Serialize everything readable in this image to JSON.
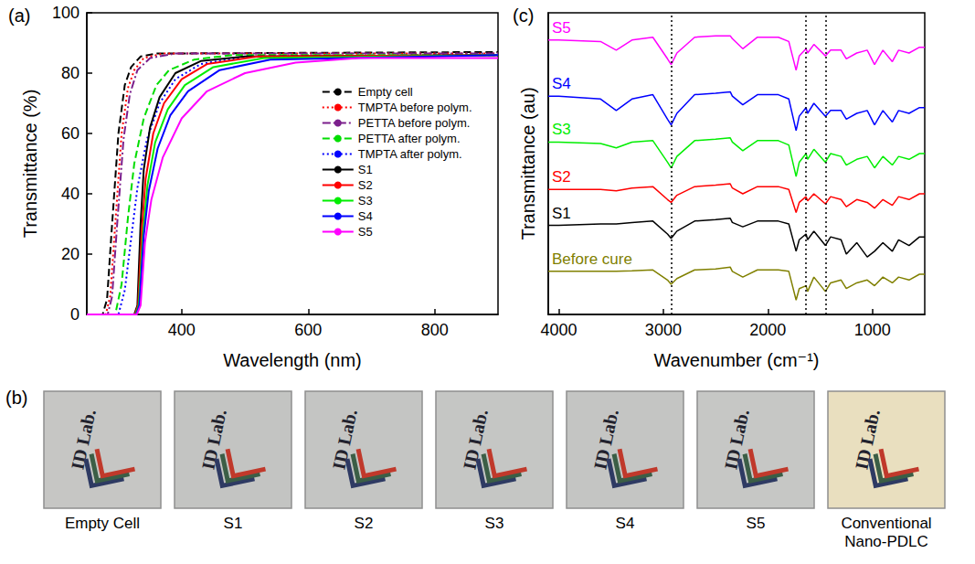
{
  "chart_data": [
    {
      "type": "line",
      "panel_label": "(a)",
      "x_label": "Wavelength (nm)",
      "y_label": "Transmittance (%)",
      "xlim": [
        250,
        900
      ],
      "xticks": [
        400,
        600,
        800
      ],
      "ylim": [
        0,
        100
      ],
      "yticks": [
        0,
        20,
        40,
        60,
        80,
        100
      ],
      "grid": false,
      "legend": "right",
      "series": [
        {
          "name": "Empty cell",
          "color": "#000000",
          "line_style": "dashed",
          "x": [
            250,
            275,
            282,
            290,
            300,
            310,
            320,
            335,
            360,
            900
          ],
          "values": [
            0,
            0,
            5,
            30,
            60,
            76,
            82,
            85.5,
            86.5,
            87
          ]
        },
        {
          "name": "TMPTA before polym.",
          "color": "#ff0000",
          "line_style": "dotted",
          "x": [
            250,
            280,
            287,
            295,
            305,
            315,
            325,
            340,
            370,
            900
          ],
          "values": [
            0,
            0,
            6,
            30,
            60,
            75,
            81,
            85,
            86.5,
            86.5
          ]
        },
        {
          "name": "PETTA before polym.",
          "color": "#7b1f8c",
          "line_style": "dashdot",
          "x": [
            250,
            283,
            290,
            298,
            308,
            318,
            330,
            350,
            390,
            900
          ],
          "values": [
            0,
            0,
            6,
            30,
            58,
            73,
            81,
            85,
            86.5,
            86.5
          ]
        },
        {
          "name": "PETTA after polym.",
          "color": "#00dd00",
          "line_style": "dashed",
          "x": [
            250,
            295,
            305,
            315,
            325,
            340,
            360,
            380,
            420,
            480,
            900
          ],
          "values": [
            0,
            0,
            10,
            32,
            50,
            65,
            76,
            81,
            84.5,
            86,
            86
          ]
        },
        {
          "name": "TMPTA after polym.",
          "color": "#0000ff",
          "line_style": "dotted",
          "x": [
            250,
            300,
            310,
            320,
            330,
            345,
            365,
            390,
            430,
            500,
            900
          ],
          "values": [
            0,
            0,
            8,
            25,
            42,
            58,
            70,
            78,
            83,
            85.5,
            86
          ]
        },
        {
          "name": "S1",
          "color": "#000000",
          "line_style": "solid",
          "x": [
            250,
            325,
            330,
            335,
            340,
            350,
            365,
            390,
            430,
            500,
            900
          ],
          "values": [
            0,
            0,
            3,
            30,
            48,
            62,
            72,
            80,
            84,
            85.5,
            86
          ]
        },
        {
          "name": "S2",
          "color": "#ff0000",
          "line_style": "solid",
          "x": [
            250,
            326,
            331,
            337,
            343,
            355,
            372,
            400,
            440,
            520,
            900
          ],
          "values": [
            0,
            0,
            3,
            28,
            45,
            60,
            70,
            78,
            83,
            85.5,
            86
          ]
        },
        {
          "name": "S3",
          "color": "#00ee00",
          "line_style": "solid",
          "x": [
            250,
            327,
            332,
            339,
            346,
            358,
            378,
            405,
            450,
            530,
            900
          ],
          "values": [
            0,
            0,
            3,
            27,
            43,
            57,
            68,
            76,
            82,
            85,
            86
          ]
        },
        {
          "name": "S4",
          "color": "#0000ff",
          "line_style": "solid",
          "x": [
            250,
            328,
            333,
            340,
            348,
            362,
            382,
            410,
            460,
            540,
            900
          ],
          "values": [
            0,
            0,
            3,
            26,
            41,
            55,
            66,
            74,
            81,
            84.5,
            86
          ]
        },
        {
          "name": "S5",
          "color": "#ff00ff",
          "line_style": "solid",
          "x": [
            250,
            329,
            335,
            342,
            352,
            370,
            400,
            440,
            500,
            580,
            680,
            900
          ],
          "values": [
            0,
            0,
            3,
            24,
            38,
            52,
            65,
            74,
            80,
            83.5,
            85,
            85
          ]
        }
      ]
    },
    {
      "type": "line",
      "panel_label": "(c)",
      "x_label": "Wavenumber (cm⁻¹)",
      "y_label": "Transmittance (au)",
      "xlim": [
        4100,
        500
      ],
      "xticks": [
        4000,
        3000,
        2000,
        1000
      ],
      "ylim": [
        0,
        105
      ],
      "grid": false,
      "tick_labels": "x",
      "vlines": [
        2925,
        1635,
        1450
      ],
      "x": [
        4100,
        4000,
        3600,
        3450,
        3300,
        3100,
        2960,
        2925,
        2870,
        2700,
        2500,
        2360,
        2340,
        2240,
        2100,
        1900,
        1800,
        1730,
        1700,
        1635,
        1620,
        1560,
        1450,
        1400,
        1300,
        1250,
        1150,
        1050,
        980,
        900,
        810,
        750,
        650,
        550,
        500
      ],
      "series": [
        {
          "name": "Before cure",
          "color": "#808000",
          "line_style": "solid",
          "values": [
            15,
            15,
            15,
            15,
            15.2,
            15.5,
            12,
            10.5,
            12.5,
            15.5,
            15.8,
            16.5,
            15,
            13,
            15.5,
            15.5,
            15,
            5,
            9,
            10,
            8,
            13,
            8,
            11,
            12,
            9,
            11,
            12,
            10,
            13,
            11,
            13,
            12,
            14,
            14
          ]
        },
        {
          "name": "S1",
          "color": "#000000",
          "line_style": "solid",
          "values": [
            31,
            31,
            31.5,
            31.5,
            32,
            32.5,
            28,
            26.5,
            29,
            32.5,
            33,
            33.5,
            32,
            30.5,
            32.5,
            32.5,
            31.5,
            22,
            26,
            28,
            26,
            29,
            24,
            27,
            26,
            21,
            25,
            20,
            22,
            25,
            22,
            26,
            24,
            27,
            27
          ]
        },
        {
          "name": "S2",
          "color": "#ff0000",
          "line_style": "solid",
          "values": [
            43.5,
            43.5,
            43.5,
            43,
            44,
            44.5,
            40,
            39,
            41.5,
            44.5,
            45,
            45.5,
            44,
            42,
            44.5,
            44.5,
            43.5,
            35.5,
            39,
            41,
            39.5,
            42,
            38.5,
            41,
            40,
            37.5,
            40,
            39,
            37,
            40,
            38,
            41,
            40,
            42,
            42
          ]
        },
        {
          "name": "S3",
          "color": "#00ee00",
          "line_style": "solid",
          "values": [
            60,
            60,
            59.5,
            58,
            60,
            60.5,
            53,
            51,
            55,
            60.5,
            61,
            61.5,
            60,
            57,
            60.5,
            60.5,
            59,
            48,
            53,
            56,
            54,
            57.5,
            53,
            56,
            55,
            52,
            54,
            55,
            51,
            55,
            52,
            55,
            54,
            56,
            56
          ]
        },
        {
          "name": "S4",
          "color": "#0000ff",
          "line_style": "solid",
          "values": [
            76,
            76,
            75,
            71,
            75,
            76.5,
            68,
            66,
            70,
            76.5,
            77,
            77.5,
            76,
            73,
            76.5,
            76.5,
            75,
            64,
            69,
            72,
            70,
            73.5,
            69,
            71,
            71,
            68,
            70,
            71,
            66,
            71,
            67,
            71,
            70,
            72,
            72
          ]
        },
        {
          "name": "S5",
          "color": "#ff00ff",
          "line_style": "solid",
          "values": [
            95.5,
            95.5,
            95,
            92,
            95.5,
            96.5,
            89,
            87,
            91,
            96.5,
            97,
            97,
            96,
            92.5,
            96.5,
            96.5,
            95,
            85,
            90,
            92.5,
            91,
            94,
            90,
            92,
            92,
            89,
            91,
            92,
            87,
            92,
            88,
            92,
            91,
            93,
            93
          ]
        }
      ]
    }
  ],
  "photo_panel": {
    "panel_label": "(b)",
    "photo_text": "ID Lab.",
    "photos": [
      {
        "caption": "Empty Cell",
        "color": "#c6c6c4"
      },
      {
        "caption": "S1",
        "color": "#c3c4c2"
      },
      {
        "caption": "S2",
        "color": "#c4c5c3"
      },
      {
        "caption": "S3",
        "color": "#c5c6c4"
      },
      {
        "caption": "S4",
        "color": "#c4c5c3"
      },
      {
        "caption": "S5",
        "color": "#c6c7c5"
      },
      {
        "caption": "Conventional Nano-PDLC",
        "color": "#e9dfbf"
      }
    ]
  }
}
